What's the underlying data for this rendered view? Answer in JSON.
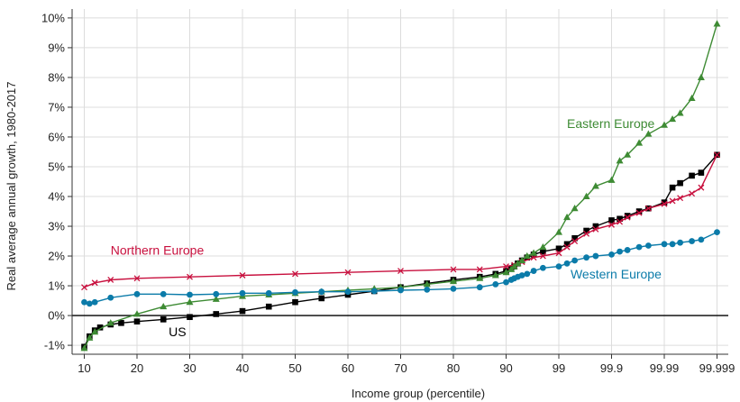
{
  "chart_data": {
    "type": "line",
    "title": "",
    "xlabel": "Income group (percentile)",
    "ylabel": "Real average annual growth, 1980-2017",
    "x_ticks": [
      "10",
      "20",
      "30",
      "40",
      "50",
      "60",
      "70",
      "80",
      "90",
      "99",
      "99.9",
      "99.99",
      "99.999"
    ],
    "y_ticks": [
      "-1%",
      "0%",
      "1%",
      "2%",
      "3%",
      "4%",
      "5%",
      "6%",
      "7%",
      "8%",
      "9%",
      "10%"
    ],
    "ylim": [
      -1.3,
      10.3
    ],
    "grid": true,
    "series": [
      {
        "name": "US",
        "color": "#000000",
        "marker": "square",
        "points": [
          [
            10,
            -1.05
          ],
          [
            11,
            -0.7
          ],
          [
            12,
            -0.5
          ],
          [
            13,
            -0.4
          ],
          [
            15,
            -0.3
          ],
          [
            17,
            -0.25
          ],
          [
            20,
            -0.2
          ],
          [
            25,
            -0.13
          ],
          [
            30,
            -0.05
          ],
          [
            35,
            0.05
          ],
          [
            40,
            0.15
          ],
          [
            45,
            0.3
          ],
          [
            50,
            0.45
          ],
          [
            55,
            0.58
          ],
          [
            60,
            0.7
          ],
          [
            65,
            0.82
          ],
          [
            70,
            0.95
          ],
          [
            75,
            1.08
          ],
          [
            80,
            1.2
          ],
          [
            85,
            1.3
          ],
          [
            88,
            1.4
          ],
          [
            90,
            1.5
          ],
          [
            92,
            1.58
          ],
          [
            93,
            1.65
          ],
          [
            94,
            1.75
          ],
          [
            95,
            1.85
          ],
          [
            96,
            1.95
          ],
          [
            97,
            2.05
          ],
          [
            98,
            2.15
          ],
          [
            99,
            2.25
          ],
          [
            99.3,
            2.4
          ],
          [
            99.5,
            2.6
          ],
          [
            99.7,
            2.85
          ],
          [
            99.8,
            3.0
          ],
          [
            99.9,
            3.2
          ],
          [
            99.93,
            3.25
          ],
          [
            99.95,
            3.35
          ],
          [
            99.97,
            3.5
          ],
          [
            99.98,
            3.6
          ],
          [
            99.99,
            3.8
          ],
          [
            99.993,
            4.3
          ],
          [
            99.995,
            4.45
          ],
          [
            99.997,
            4.7
          ],
          [
            99.998,
            4.8
          ],
          [
            99.999,
            5.4
          ]
        ]
      },
      {
        "name": "Northern Europe",
        "color": "#c8103e",
        "marker": "x",
        "points": [
          [
            10,
            0.95
          ],
          [
            12,
            1.1
          ],
          [
            15,
            1.2
          ],
          [
            20,
            1.25
          ],
          [
            30,
            1.3
          ],
          [
            40,
            1.35
          ],
          [
            50,
            1.4
          ],
          [
            60,
            1.45
          ],
          [
            70,
            1.5
          ],
          [
            80,
            1.55
          ],
          [
            85,
            1.55
          ],
          [
            90,
            1.65
          ],
          [
            93,
            1.7
          ],
          [
            95,
            1.8
          ],
          [
            97,
            1.95
          ],
          [
            98,
            2.0
          ],
          [
            99,
            2.1
          ],
          [
            99.3,
            2.3
          ],
          [
            99.5,
            2.5
          ],
          [
            99.7,
            2.75
          ],
          [
            99.8,
            2.9
          ],
          [
            99.9,
            3.05
          ],
          [
            99.93,
            3.15
          ],
          [
            99.95,
            3.3
          ],
          [
            99.97,
            3.45
          ],
          [
            99.98,
            3.6
          ],
          [
            99.99,
            3.75
          ],
          [
            99.993,
            3.85
          ],
          [
            99.995,
            3.95
          ],
          [
            99.997,
            4.1
          ],
          [
            99.998,
            4.3
          ],
          [
            99.999,
            5.4
          ]
        ]
      },
      {
        "name": "Eastern Europe",
        "color": "#3e8b34",
        "marker": "triangle",
        "points": [
          [
            10,
            -1.1
          ],
          [
            11,
            -0.75
          ],
          [
            12,
            -0.55
          ],
          [
            15,
            -0.25
          ],
          [
            20,
            0.05
          ],
          [
            25,
            0.3
          ],
          [
            30,
            0.45
          ],
          [
            35,
            0.55
          ],
          [
            40,
            0.65
          ],
          [
            45,
            0.7
          ],
          [
            50,
            0.75
          ],
          [
            55,
            0.8
          ],
          [
            60,
            0.85
          ],
          [
            65,
            0.9
          ],
          [
            70,
            0.95
          ],
          [
            75,
            1.05
          ],
          [
            80,
            1.15
          ],
          [
            85,
            1.25
          ],
          [
            88,
            1.35
          ],
          [
            90,
            1.45
          ],
          [
            92,
            1.55
          ],
          [
            93,
            1.65
          ],
          [
            94,
            1.75
          ],
          [
            95,
            1.85
          ],
          [
            96,
            2.0
          ],
          [
            97,
            2.1
          ],
          [
            98,
            2.3
          ],
          [
            99,
            2.8
          ],
          [
            99.3,
            3.3
          ],
          [
            99.5,
            3.6
          ],
          [
            99.7,
            4.0
          ],
          [
            99.8,
            4.35
          ],
          [
            99.9,
            4.55
          ],
          [
            99.93,
            5.2
          ],
          [
            99.95,
            5.4
          ],
          [
            99.97,
            5.8
          ],
          [
            99.98,
            6.1
          ],
          [
            99.99,
            6.4
          ],
          [
            99.993,
            6.6
          ],
          [
            99.995,
            6.8
          ],
          [
            99.997,
            7.3
          ],
          [
            99.998,
            8.0
          ],
          [
            99.999,
            9.8
          ]
        ]
      },
      {
        "name": "Western Europe",
        "color": "#0b7ba9",
        "marker": "circle",
        "points": [
          [
            10,
            0.45
          ],
          [
            11,
            0.4
          ],
          [
            12,
            0.45
          ],
          [
            15,
            0.6
          ],
          [
            20,
            0.72
          ],
          [
            25,
            0.72
          ],
          [
            30,
            0.7
          ],
          [
            35,
            0.72
          ],
          [
            40,
            0.75
          ],
          [
            45,
            0.75
          ],
          [
            50,
            0.78
          ],
          [
            55,
            0.8
          ],
          [
            60,
            0.8
          ],
          [
            65,
            0.82
          ],
          [
            70,
            0.85
          ],
          [
            75,
            0.87
          ],
          [
            80,
            0.9
          ],
          [
            85,
            0.95
          ],
          [
            88,
            1.05
          ],
          [
            90,
            1.12
          ],
          [
            92,
            1.2
          ],
          [
            93,
            1.25
          ],
          [
            94,
            1.3
          ],
          [
            95,
            1.35
          ],
          [
            96,
            1.4
          ],
          [
            97,
            1.5
          ],
          [
            98,
            1.6
          ],
          [
            99,
            1.65
          ],
          [
            99.3,
            1.75
          ],
          [
            99.5,
            1.85
          ],
          [
            99.7,
            1.95
          ],
          [
            99.8,
            2.0
          ],
          [
            99.9,
            2.05
          ],
          [
            99.93,
            2.15
          ],
          [
            99.95,
            2.2
          ],
          [
            99.97,
            2.3
          ],
          [
            99.98,
            2.35
          ],
          [
            99.99,
            2.4
          ],
          [
            99.993,
            2.4
          ],
          [
            99.995,
            2.45
          ],
          [
            99.997,
            2.5
          ],
          [
            99.998,
            2.55
          ],
          [
            99.999,
            2.8
          ]
        ]
      }
    ],
    "annotations": [
      {
        "text": "Eastern Europe",
        "series": "Eastern Europe",
        "x": 99.3,
        "y": 6.3
      },
      {
        "text": "Northern Europe",
        "series": "Northern Europe",
        "x": 15,
        "y": 2.05
      },
      {
        "text": "Western Europe",
        "series": "Western Europe",
        "x": 99.4,
        "y": 1.25
      },
      {
        "text": "US",
        "series": "US",
        "x": 26,
        "y": -0.7
      }
    ]
  }
}
